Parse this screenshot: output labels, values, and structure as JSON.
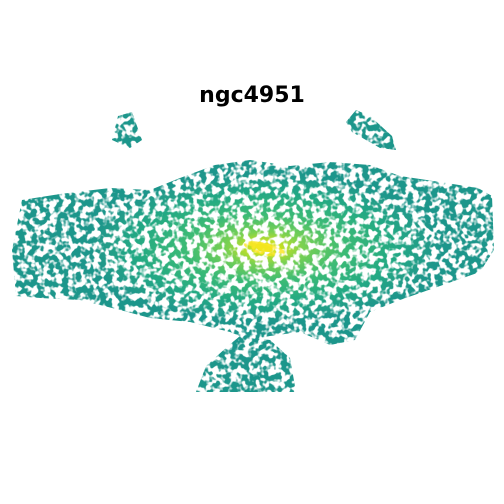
{
  "figure": {
    "title": "ngc4951"
  },
  "colormap": {
    "name": "viridis",
    "low": "#1f968b",
    "mid": "#3cbb75",
    "high": "#fde725",
    "background": "#ffffff"
  }
}
